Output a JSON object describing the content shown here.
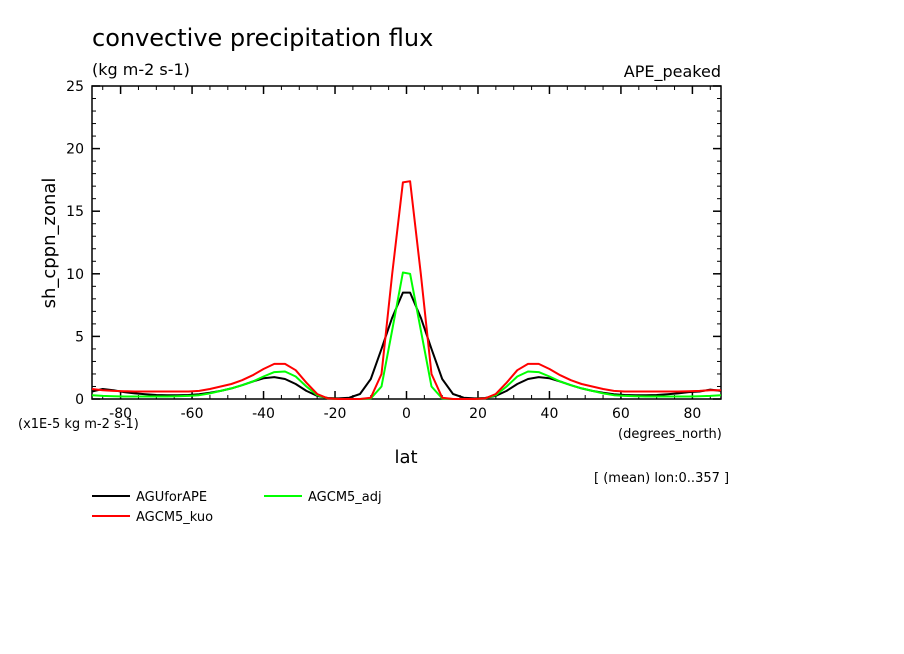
{
  "chart_data": {
    "type": "line",
    "title": "convective precipitation flux",
    "units": "(kg m-2 s-1)",
    "experiment": "APE_peaked",
    "ylabel": "sh_cppn_zonal",
    "xlabel": "lat",
    "x_units": "(degrees_north)",
    "y_scale_note": "(x1E-5 kg m-2 s-1)",
    "mean_note": "[ (mean) lon:0..357 ]",
    "xlim": [
      -88,
      88
    ],
    "ylim": [
      0,
      25
    ],
    "x_ticks": [
      -80,
      -60,
      -40,
      -20,
      0,
      20,
      40,
      60,
      80
    ],
    "x_tick_labels": [
      "-80",
      "-60",
      "-40",
      "-20",
      "0",
      "20",
      "40",
      "60",
      "80"
    ],
    "y_ticks": [
      0,
      5,
      10,
      15,
      20,
      25
    ],
    "y_tick_labels": [
      "0",
      "5",
      "10",
      "15",
      "20",
      "25"
    ],
    "x": [
      -88,
      -85,
      -82,
      -79,
      -76,
      -73,
      -70,
      -67,
      -64,
      -61,
      -58,
      -55,
      -52,
      -49,
      -46,
      -43,
      -40,
      -37,
      -34,
      -31,
      -28,
      -25,
      -22,
      -19,
      -16,
      -13,
      -10,
      -7,
      -4,
      -1,
      1,
      4,
      7,
      10,
      13,
      16,
      19,
      22,
      25,
      28,
      31,
      34,
      37,
      40,
      43,
      46,
      49,
      52,
      55,
      58,
      61,
      64,
      67,
      70,
      73,
      76,
      79,
      82,
      85,
      88
    ],
    "series": [
      {
        "name": "AGUforAPE",
        "color": "#000000",
        "values": [
          0.6,
          0.8,
          0.7,
          0.55,
          0.45,
          0.38,
          0.32,
          0.3,
          0.3,
          0.32,
          0.38,
          0.5,
          0.65,
          0.85,
          1.1,
          1.4,
          1.65,
          1.75,
          1.6,
          1.2,
          0.65,
          0.25,
          0.08,
          0.05,
          0.1,
          0.4,
          1.6,
          4.0,
          6.5,
          8.5,
          8.5,
          6.5,
          4.0,
          1.6,
          0.4,
          0.1,
          0.05,
          0.08,
          0.25,
          0.65,
          1.2,
          1.6,
          1.75,
          1.65,
          1.4,
          1.1,
          0.85,
          0.65,
          0.5,
          0.38,
          0.32,
          0.3,
          0.3,
          0.32,
          0.38,
          0.45,
          0.55,
          0.6,
          0.75,
          0.65
        ]
      },
      {
        "name": "AGCM5_kuo",
        "color": "#ff0000",
        "values": [
          0.8,
          0.7,
          0.65,
          0.62,
          0.6,
          0.6,
          0.6,
          0.6,
          0.6,
          0.6,
          0.65,
          0.8,
          1.0,
          1.2,
          1.5,
          1.9,
          2.4,
          2.8,
          2.8,
          2.3,
          1.3,
          0.4,
          0.05,
          0.0,
          0.0,
          0.0,
          0.1,
          2.0,
          10.0,
          17.3,
          17.4,
          10.0,
          2.0,
          0.1,
          0.0,
          0.0,
          0.0,
          0.05,
          0.4,
          1.3,
          2.3,
          2.8,
          2.8,
          2.4,
          1.9,
          1.5,
          1.2,
          1.0,
          0.8,
          0.65,
          0.6,
          0.6,
          0.6,
          0.6,
          0.6,
          0.6,
          0.62,
          0.65,
          0.7,
          0.7
        ]
      },
      {
        "name": "AGCM5_adj",
        "color": "#00ff00",
        "values": [
          0.3,
          0.25,
          0.22,
          0.2,
          0.2,
          0.2,
          0.2,
          0.2,
          0.22,
          0.25,
          0.3,
          0.45,
          0.65,
          0.85,
          1.1,
          1.4,
          1.8,
          2.15,
          2.2,
          1.8,
          1.0,
          0.3,
          0.05,
          0.0,
          0.0,
          0.0,
          0.05,
          1.0,
          5.5,
          10.1,
          10.0,
          5.5,
          1.0,
          0.05,
          0.0,
          0.0,
          0.0,
          0.05,
          0.3,
          1.0,
          1.8,
          2.2,
          2.15,
          1.8,
          1.4,
          1.1,
          0.85,
          0.65,
          0.45,
          0.3,
          0.25,
          0.22,
          0.2,
          0.2,
          0.2,
          0.2,
          0.2,
          0.22,
          0.25,
          0.3
        ]
      }
    ],
    "legend_order": [
      "AGUforAPE",
      "AGCM5_adj",
      "AGCM5_kuo"
    ]
  }
}
